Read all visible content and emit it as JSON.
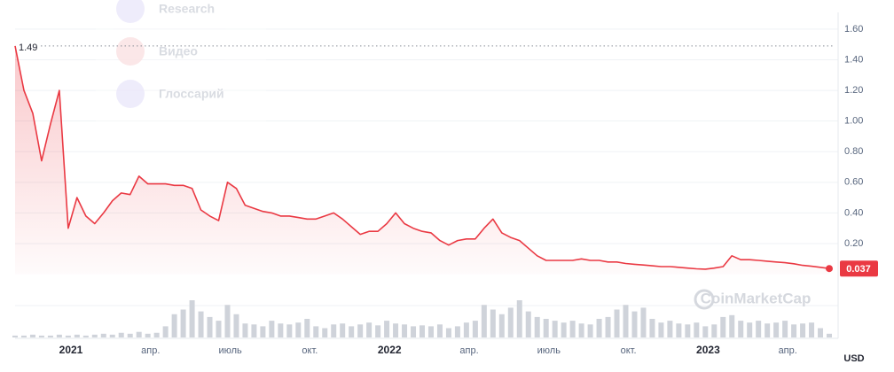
{
  "chart_data": {
    "type": "area",
    "color": "#ea3943",
    "values": [
      1.49,
      1.2,
      1.05,
      0.74,
      0.98,
      1.2,
      0.3,
      0.5,
      0.38,
      0.33,
      0.4,
      0.48,
      0.53,
      0.52,
      0.64,
      0.59,
      0.59,
      0.59,
      0.58,
      0.58,
      0.56,
      0.42,
      0.38,
      0.35,
      0.6,
      0.56,
      0.45,
      0.43,
      0.41,
      0.4,
      0.38,
      0.38,
      0.37,
      0.36,
      0.36,
      0.38,
      0.4,
      0.36,
      0.31,
      0.26,
      0.28,
      0.28,
      0.33,
      0.4,
      0.33,
      0.3,
      0.28,
      0.27,
      0.22,
      0.19,
      0.22,
      0.23,
      0.23,
      0.3,
      0.36,
      0.27,
      0.24,
      0.22,
      0.17,
      0.12,
      0.09,
      0.09,
      0.09,
      0.09,
      0.1,
      0.09,
      0.09,
      0.08,
      0.08,
      0.07,
      0.065,
      0.06,
      0.055,
      0.05,
      0.05,
      0.045,
      0.04,
      0.035,
      0.033,
      0.04,
      0.05,
      0.12,
      0.095,
      0.095,
      0.09,
      0.085,
      0.08,
      0.075,
      0.068,
      0.058,
      0.052,
      0.045,
      0.037
    ],
    "volume": [
      2,
      2,
      3,
      2,
      2,
      3,
      2,
      3,
      2,
      3,
      4,
      3,
      5,
      4,
      6,
      4,
      5,
      12,
      25,
      30,
      40,
      28,
      22,
      18,
      35,
      25,
      15,
      14,
      12,
      18,
      15,
      14,
      16,
      20,
      12,
      10,
      14,
      15,
      12,
      14,
      16,
      13,
      18,
      15,
      14,
      12,
      13,
      12,
      14,
      10,
      12,
      16,
      18,
      35,
      30,
      25,
      32,
      40,
      28,
      22,
      20,
      18,
      16,
      18,
      15,
      14,
      20,
      22,
      30,
      35,
      28,
      32,
      20,
      16,
      18,
      15,
      14,
      16,
      12,
      14,
      22,
      24,
      18,
      16,
      18,
      15,
      16,
      18,
      14,
      15,
      16,
      10,
      4
    ],
    "volume_color": "#cfd3da",
    "x_labels": [
      "2021",
      "апр.",
      "июль",
      "окт.",
      "2022",
      "апр.",
      "июль",
      "окт.",
      "2023",
      "апр."
    ],
    "ylim": [
      0,
      1.7
    ],
    "yticks": [
      {
        "value": 0.2,
        "label": "0.20"
      },
      {
        "value": 0.4,
        "label": "0.40"
      },
      {
        "value": 0.6,
        "label": "0.60"
      },
      {
        "value": 0.8,
        "label": "0.80"
      },
      {
        "value": 1.0,
        "label": "1.00"
      },
      {
        "value": 1.2,
        "label": "1.20"
      },
      {
        "value": 1.4,
        "label": "1.40"
      },
      {
        "value": 1.6,
        "label": "1.60"
      }
    ],
    "grid": true,
    "currency": "USD",
    "watermark": "CoinMarketCap"
  },
  "menu_items": [
    "Research",
    "Видео",
    "Глоссарий"
  ]
}
